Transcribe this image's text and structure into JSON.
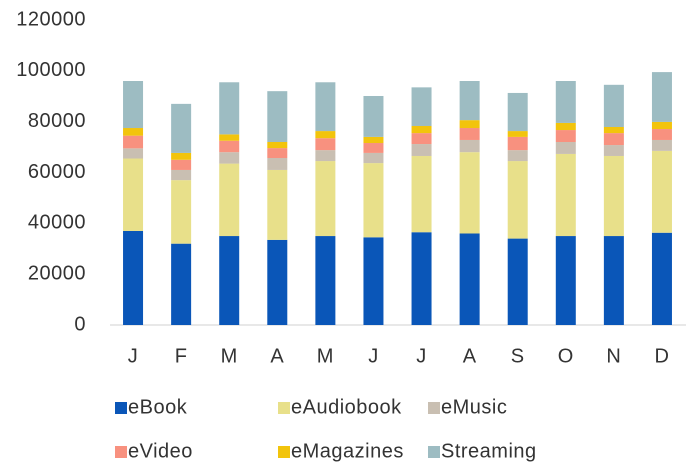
{
  "chart_data": {
    "type": "stacked_bar",
    "categories": [
      "J",
      "F",
      "M",
      "A",
      "M",
      "J",
      "J",
      "A",
      "S",
      "O",
      "N",
      "D"
    ],
    "series": [
      {
        "name": "eBook",
        "color": "#0a56b8",
        "values": [
          37000,
          32000,
          35000,
          33500,
          35000,
          34500,
          36500,
          36000,
          34000,
          35000,
          35000,
          36300
        ]
      },
      {
        "name": "eAudiobook",
        "color": "#e8e08a",
        "values": [
          28500,
          25000,
          28500,
          27500,
          29500,
          29200,
          30000,
          32000,
          30500,
          32300,
          31500,
          32200
        ]
      },
      {
        "name": "eMusic",
        "color": "#c9bfb2",
        "values": [
          4000,
          4000,
          4500,
          4700,
          4300,
          4000,
          4700,
          4800,
          4300,
          4700,
          4300,
          4300
        ]
      },
      {
        "name": "eVideo",
        "color": "#f8917f",
        "values": [
          5000,
          4000,
          4500,
          3900,
          4700,
          3900,
          4300,
          4700,
          5200,
          4700,
          4700,
          4300
        ]
      },
      {
        "name": "eMagazines",
        "color": "#f2c40c",
        "values": [
          3000,
          2700,
          2500,
          2400,
          2800,
          2400,
          2800,
          3100,
          2300,
          2800,
          2400,
          2800
        ]
      },
      {
        "name": "Streaming",
        "color": "#9dbcc2",
        "values": [
          18500,
          19300,
          20500,
          20000,
          19200,
          16100,
          15200,
          15400,
          15000,
          16500,
          16600,
          19600
        ]
      }
    ],
    "ylim": [
      0,
      120000
    ],
    "yticks": [
      0,
      20000,
      40000,
      60000,
      80000,
      100000,
      120000
    ],
    "grid": false
  }
}
